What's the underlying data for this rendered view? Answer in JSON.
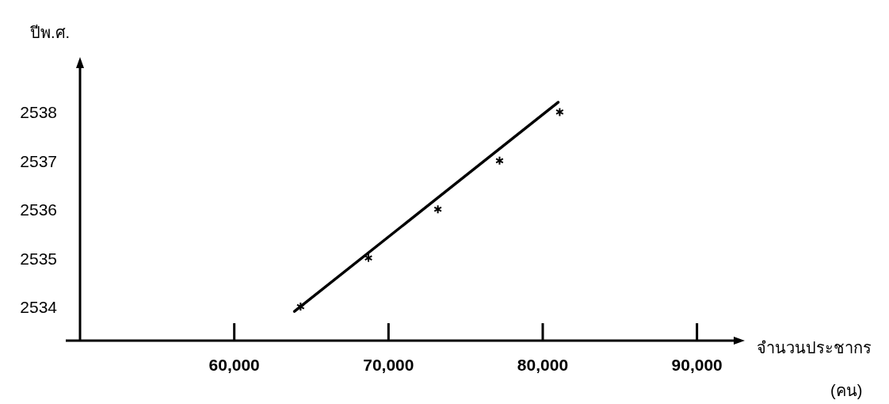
{
  "chart_data": {
    "type": "scatter",
    "ylabel": "ปีพ.ศ.",
    "xlabel": "จำนวนประชากร (คน)",
    "xlim": [
      50000,
      93100
    ],
    "ylim": [
      2533.3,
      2539
    ],
    "xticks": [
      {
        "value": 60000,
        "label": "60,000"
      },
      {
        "value": 70000,
        "label": "70,000"
      },
      {
        "value": 80000,
        "label": "80,000"
      },
      {
        "value": 90000,
        "label": "90,000"
      }
    ],
    "yticks": [
      2534,
      2535,
      2536,
      2537,
      2538
    ],
    "marker": "cross",
    "grid": false,
    "series": [
      {
        "color": "#000000",
        "x": [
          64300,
          68700,
          73200,
          77200,
          81100
        ],
        "values": [
          2534,
          2535,
          2536,
          2537,
          2538
        ]
      },
      {
        "type": "line",
        "color": "#000000",
        "marker": "none",
        "line_style": "solid",
        "x": [
          63900,
          81000
        ],
        "values": [
          2533.9,
          2538.2
        ]
      }
    ]
  }
}
